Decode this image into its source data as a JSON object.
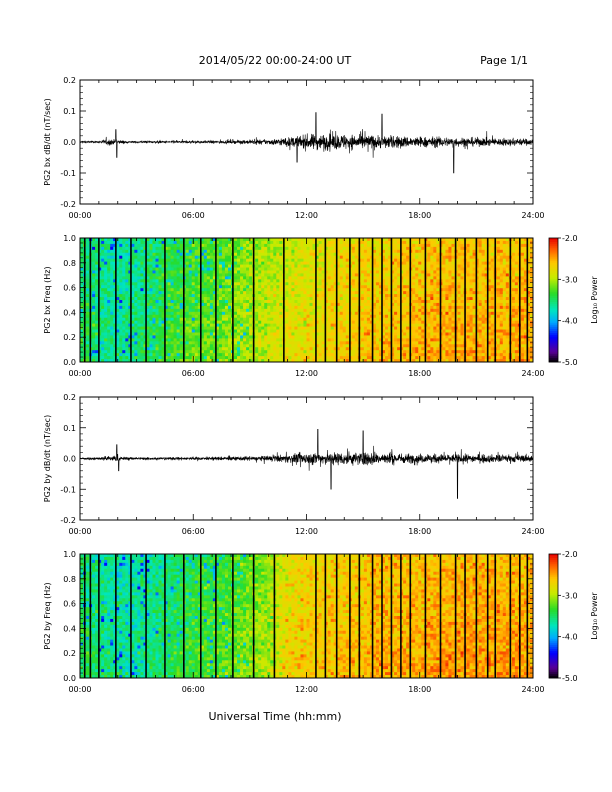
{
  "header": {
    "date_range": "2014/05/22  00:00-24:00 UT",
    "page": "Page 1/1"
  },
  "footer": {
    "x_axis_title": "Universal Time (hh:mm)"
  },
  "colorbar": {
    "label": "Log₁₀ Power",
    "ticks": [
      "-2.0",
      "-3.0",
      "-4.0",
      "-5.0"
    ],
    "range": [
      -5.0,
      -2.0
    ]
  },
  "chart_data": [
    {
      "type": "line",
      "ylabel": "PG2 bx dB/dt (nT/sec)",
      "xticks": [
        "00:00",
        "06:00",
        "12:00",
        "18:00",
        "24:00"
      ],
      "yticks": [
        "0.2",
        "0.1",
        "0.0",
        "-0.1",
        "-0.2"
      ],
      "xlim": [
        0,
        24
      ],
      "ylim": [
        -0.2,
        0.2
      ],
      "x_unit": "hours UT",
      "envelope": {
        "hours": [
          0,
          1,
          1.5,
          2,
          2.5,
          4,
          6,
          8,
          10,
          11,
          12,
          13,
          14,
          15,
          16,
          17,
          18,
          19,
          20,
          21,
          22,
          23,
          24
        ],
        "amplitude": [
          0.006,
          0.008,
          0.02,
          0.015,
          0.007,
          0.007,
          0.008,
          0.01,
          0.018,
          0.03,
          0.05,
          0.055,
          0.05,
          0.05,
          0.045,
          0.04,
          0.035,
          0.035,
          0.03,
          0.03,
          0.025,
          0.025,
          0.022
        ]
      },
      "spikes": [
        {
          "hour": 1.9,
          "value": 0.04
        },
        {
          "hour": 1.95,
          "value": -0.05
        },
        {
          "hour": 11.5,
          "value": -0.065
        },
        {
          "hour": 12.5,
          "value": 0.095
        },
        {
          "hour": 16.0,
          "value": 0.09
        },
        {
          "hour": 19.8,
          "value": -0.1
        }
      ]
    },
    {
      "type": "heatmap",
      "ylabel": "PG2 bx Freq (Hz)",
      "xticks": [
        "00:00",
        "06:00",
        "12:00",
        "18:00",
        "24:00"
      ],
      "yticks": [
        "1.0",
        "0.8",
        "0.6",
        "0.4",
        "0.2",
        "0.0"
      ],
      "xlim": [
        0,
        24
      ],
      "ylim": [
        0.0,
        1.0
      ],
      "colormap": "rainbow",
      "log10_power_level_by_hour": {
        "hours": [
          0,
          1,
          2,
          3,
          4,
          5,
          6,
          7,
          8,
          9,
          10,
          11,
          12,
          13,
          14,
          15,
          16,
          17,
          18,
          19,
          20,
          21,
          22,
          23,
          24
        ],
        "level": [
          -3.4,
          -3.5,
          -3.6,
          -3.5,
          -3.4,
          -3.3,
          -3.2,
          -3.2,
          -3.1,
          -3.0,
          -2.9,
          -2.8,
          -2.75,
          -2.7,
          -2.65,
          -2.6,
          -2.6,
          -2.55,
          -2.55,
          -2.5,
          -2.5,
          -2.5,
          -2.5,
          -2.5,
          -2.5
        ]
      },
      "gap_hours": [
        0.25,
        0.55,
        1.0,
        1.9,
        2.7,
        3.5,
        4.5,
        5.5,
        6.4,
        7.2,
        8.1,
        9.2,
        10.8,
        12.5,
        13.0,
        13.6,
        14.3,
        14.8,
        15.5,
        16.0,
        16.5,
        17.0,
        17.5,
        18.3,
        19.1,
        19.9,
        20.4,
        21.0,
        21.6,
        22.0,
        22.8,
        23.3,
        23.7
      ]
    },
    {
      "type": "line",
      "ylabel": "PG2 by dB/dt (nT/sec)",
      "xticks": [
        "00:00",
        "06:00",
        "12:00",
        "18:00",
        "24:00"
      ],
      "yticks": [
        "0.2",
        "0.1",
        "0.0",
        "-0.1",
        "-0.2"
      ],
      "xlim": [
        0,
        24
      ],
      "ylim": [
        -0.2,
        0.2
      ],
      "x_unit": "hours UT",
      "envelope": {
        "hours": [
          0,
          1,
          1.5,
          2,
          2.5,
          4,
          6,
          8,
          10,
          11,
          12,
          13,
          14,
          15,
          16,
          17,
          18,
          19,
          20,
          21,
          22,
          23,
          24
        ],
        "amplitude": [
          0.007,
          0.009,
          0.02,
          0.015,
          0.009,
          0.009,
          0.01,
          0.012,
          0.018,
          0.028,
          0.04,
          0.045,
          0.045,
          0.045,
          0.04,
          0.035,
          0.03,
          0.03,
          0.03,
          0.028,
          0.026,
          0.026,
          0.024
        ]
      },
      "spikes": [
        {
          "hour": 1.95,
          "value": 0.045
        },
        {
          "hour": 2.05,
          "value": -0.04
        },
        {
          "hour": 12.6,
          "value": 0.095
        },
        {
          "hour": 15.0,
          "value": 0.09
        },
        {
          "hour": 13.3,
          "value": -0.1
        },
        {
          "hour": 20.0,
          "value": -0.13
        }
      ]
    },
    {
      "type": "heatmap",
      "ylabel": "PG2 by Freq (Hz)",
      "xticks": [
        "00:00",
        "06:00",
        "12:00",
        "18:00",
        "24:00"
      ],
      "yticks": [
        "1.0",
        "0.8",
        "0.6",
        "0.4",
        "0.2",
        "0.0"
      ],
      "xlim": [
        0,
        24
      ],
      "ylim": [
        0.0,
        1.0
      ],
      "colormap": "rainbow",
      "log10_power_level_by_hour": {
        "hours": [
          0,
          1,
          2,
          3,
          4,
          5,
          6,
          7,
          8,
          9,
          10,
          11,
          12,
          13,
          14,
          15,
          16,
          17,
          18,
          19,
          20,
          21,
          22,
          23,
          24
        ],
        "level": [
          -3.4,
          -3.5,
          -3.6,
          -3.6,
          -3.5,
          -3.4,
          -3.3,
          -3.3,
          -3.2,
          -3.1,
          -3.0,
          -2.7,
          -2.6,
          -2.6,
          -2.55,
          -2.55,
          -2.5,
          -2.5,
          -2.5,
          -2.45,
          -2.45,
          -2.45,
          -2.45,
          -2.45,
          -2.45
        ]
      },
      "gap_hours": [
        0.25,
        0.55,
        1.0,
        1.9,
        2.7,
        3.5,
        4.5,
        5.5,
        6.4,
        7.2,
        8.1,
        9.2,
        10.3,
        12.5,
        13.0,
        13.6,
        14.3,
        14.8,
        15.5,
        16.0,
        16.5,
        17.0,
        17.5,
        18.3,
        19.1,
        19.9,
        20.4,
        21.0,
        21.6,
        22.0,
        22.8,
        23.3,
        23.7
      ]
    }
  ]
}
